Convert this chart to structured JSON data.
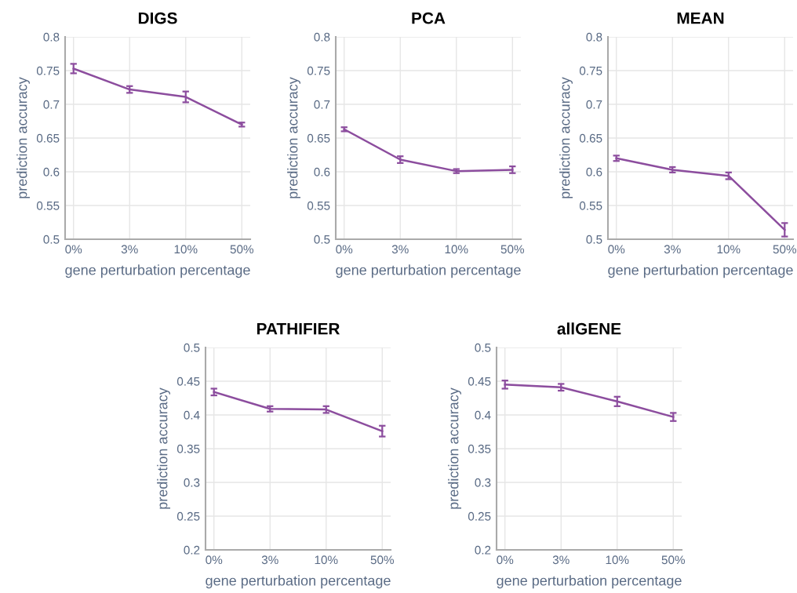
{
  "chart_data": [
    {
      "type": "line",
      "title": "DIGS",
      "xlabel": "gene perturbation percentage",
      "ylabel": "prediction accuracy",
      "categories": [
        "0%",
        "3%",
        "10%",
        "50%"
      ],
      "series": [
        {
          "color": "#8c4d9e",
          "values": [
            0.753,
            0.722,
            0.711,
            0.67
          ],
          "errors": [
            0.007,
            0.005,
            0.008,
            0.003
          ]
        }
      ],
      "ylim": [
        0.5,
        0.8
      ],
      "yticks": [
        0.5,
        0.55,
        0.6,
        0.65,
        0.7,
        0.75,
        0.8
      ],
      "grid": true,
      "marker": "none",
      "line_style": "solid"
    },
    {
      "type": "line",
      "title": "PCA",
      "xlabel": "gene perturbation percentage",
      "ylabel": "prediction accuracy",
      "categories": [
        "0%",
        "3%",
        "10%",
        "50%"
      ],
      "series": [
        {
          "color": "#8c4d9e",
          "values": [
            0.663,
            0.618,
            0.601,
            0.603
          ],
          "errors": [
            0.003,
            0.005,
            0.003,
            0.005
          ]
        }
      ],
      "ylim": [
        0.5,
        0.8
      ],
      "yticks": [
        0.5,
        0.55,
        0.6,
        0.65,
        0.7,
        0.75,
        0.8
      ],
      "grid": true,
      "marker": "none",
      "line_style": "solid"
    },
    {
      "type": "line",
      "title": "MEAN",
      "xlabel": "gene perturbation percentage",
      "ylabel": "prediction accuracy",
      "categories": [
        "0%",
        "3%",
        "10%",
        "50%"
      ],
      "series": [
        {
          "color": "#8c4d9e",
          "values": [
            0.62,
            0.603,
            0.594,
            0.514
          ],
          "errors": [
            0.004,
            0.004,
            0.005,
            0.01
          ]
        }
      ],
      "ylim": [
        0.5,
        0.8
      ],
      "yticks": [
        0.5,
        0.55,
        0.6,
        0.65,
        0.7,
        0.75,
        0.8
      ],
      "grid": true,
      "marker": "none",
      "line_style": "solid"
    },
    {
      "type": "line",
      "title": "PATHIFIER",
      "xlabel": "gene perturbation percentage",
      "ylabel": "prediction accuracy",
      "categories": [
        "0%",
        "3%",
        "10%",
        "50%"
      ],
      "series": [
        {
          "color": "#8c4d9e",
          "values": [
            0.434,
            0.409,
            0.408,
            0.376
          ],
          "errors": [
            0.005,
            0.004,
            0.005,
            0.008
          ]
        }
      ],
      "ylim": [
        0.2,
        0.5
      ],
      "yticks": [
        0.2,
        0.25,
        0.3,
        0.35,
        0.4,
        0.45,
        0.5
      ],
      "grid": true,
      "marker": "none",
      "line_style": "solid"
    },
    {
      "type": "line",
      "title": "allGENE",
      "xlabel": "gene perturbation percentage",
      "ylabel": "prediction accuracy",
      "categories": [
        "0%",
        "3%",
        "10%",
        "50%"
      ],
      "series": [
        {
          "color": "#8c4d9e",
          "values": [
            0.445,
            0.441,
            0.42,
            0.397
          ],
          "errors": [
            0.006,
            0.005,
            0.007,
            0.006
          ]
        }
      ],
      "ylim": [
        0.2,
        0.5
      ],
      "yticks": [
        0.2,
        0.25,
        0.3,
        0.35,
        0.4,
        0.45,
        0.5
      ],
      "grid": true,
      "marker": "none",
      "line_style": "solid"
    }
  ]
}
